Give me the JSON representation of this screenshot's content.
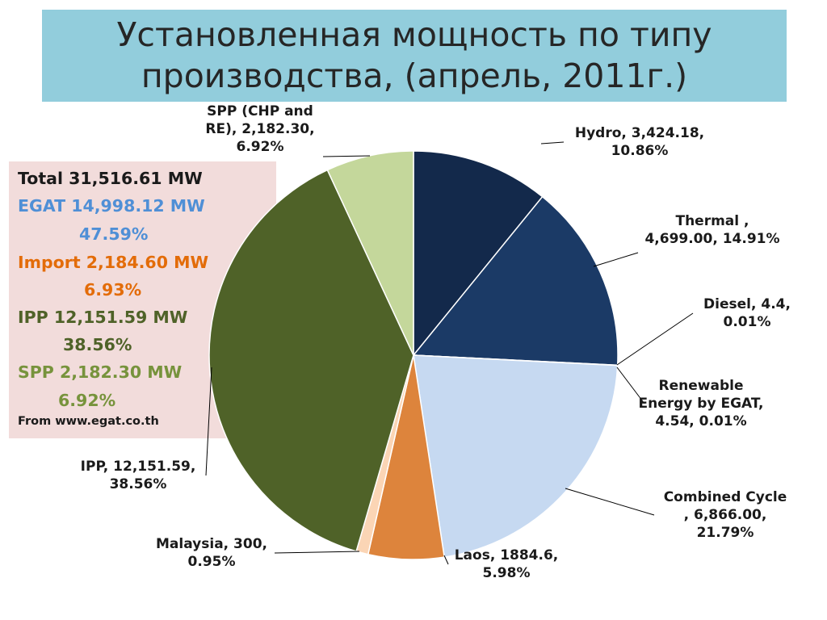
{
  "title": {
    "line1": "Установленная мощность по типу",
    "line2": "производства, (апрель, 2011г.)"
  },
  "summary": {
    "total": "Total 31,516.61 MW",
    "egat_line1": "EGAT 14,998.12 MW",
    "egat_line2": "47.59%",
    "import_line1": "Import 2,184.60 MW",
    "import_line2": "6.93%",
    "ipp_line1": "IPP 12,151.59 MW",
    "ipp_line2": "38.56%",
    "spp_line1": "SPP 2,182.30 MW",
    "spp_line2": "6.92%",
    "source": "From www.egat.co.th",
    "colors": {
      "total": "#1a1a1a",
      "egat": "#4f8fd6",
      "import": "#e36c09",
      "ipp": "#4f6228",
      "spp": "#77933c"
    }
  },
  "chart_data": {
    "type": "pie",
    "start_angle_deg": 0,
    "direction": "clockwise",
    "slices": [
      {
        "value": 3424.18,
        "percent": 10.86,
        "color": "#13294b",
        "label_lines": [
          "Hydro, 3,424.18,",
          "10.86%"
        ]
      },
      {
        "value": 4699.0,
        "percent": 14.91,
        "color": "#1b3a66",
        "label_lines": [
          "Thermal ,",
          "4,699.00, 14.91%"
        ]
      },
      {
        "value": 4.4,
        "percent": 0.01,
        "color": "#1f497d",
        "label_lines": [
          "Diesel, 4.4,",
          "0.01%"
        ]
      },
      {
        "value": 4.54,
        "percent": 0.01,
        "color": "#95b3d7",
        "label_lines": [
          "Renewable",
          "Energy by EGAT,",
          "4.54, 0.01%"
        ]
      },
      {
        "value": 6866.0,
        "percent": 21.79,
        "color": "#c6d9f1",
        "label_lines": [
          "Combined Cycle",
          ", 6,866.00,",
          "21.79%"
        ]
      },
      {
        "value": 1884.6,
        "percent": 5.98,
        "color": "#dd843c",
        "label_lines": [
          "Laos, 1884.6,",
          "5.98%"
        ]
      },
      {
        "value": 300,
        "percent": 0.95,
        "color": "#fbd5b5",
        "label_lines": [
          "Malaysia, 300,",
          "0.95%"
        ]
      },
      {
        "value": 12151.59,
        "percent": 38.56,
        "color": "#4f6228",
        "label_lines": [
          "IPP, 12,151.59,",
          "38.56%"
        ]
      },
      {
        "value": 2182.3,
        "percent": 6.92,
        "color": "#c4d79b",
        "label_lines": [
          "SPP (CHP and",
          "RE), 2,182.30,",
          "6.92%"
        ]
      }
    ]
  }
}
